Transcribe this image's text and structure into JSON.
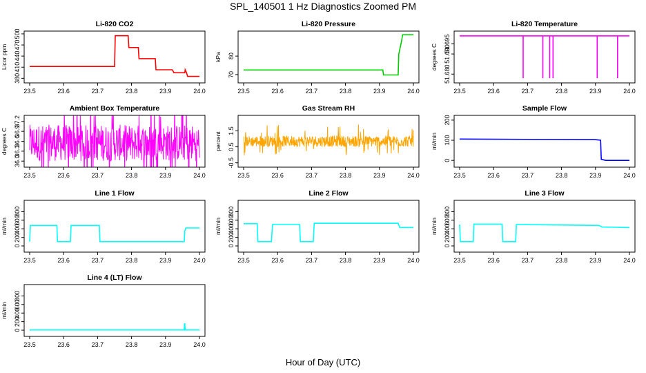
{
  "figure": {
    "title": "SPL_140501  1 Hz Diagnostics Zoomed PM",
    "xlabel": "Hour of Day (UTC)"
  },
  "chart_data": [
    {
      "type": "line",
      "title": "Li-820 CO2",
      "ylabel": "Licor ppm",
      "color": "#ff0000",
      "xlim": [
        23.5,
        24.0
      ],
      "ylim": [
        375,
        500
      ],
      "x_ticks": [
        "23.5",
        "23.6",
        "23.7",
        "23.8",
        "23.9",
        "24.0"
      ],
      "y_ticks": [
        {
          "v": 380,
          "label": "380"
        },
        {
          "v": 410,
          "label": "410"
        },
        {
          "v": 440,
          "label": "440"
        },
        {
          "v": 470,
          "label": "470"
        },
        {
          "v": 500,
          "label": "500"
        }
      ],
      "series": [
        {
          "x": [
            23.5,
            23.75,
            23.752,
            23.79,
            23.792,
            23.82,
            23.822,
            23.87,
            23.872,
            23.92,
            23.925,
            23.957,
            23.958,
            23.962,
            23.965,
            24.0
          ],
          "y": [
            412,
            412,
            495,
            495,
            463,
            463,
            433,
            433,
            403,
            403,
            395,
            395,
            403,
            395,
            385,
            385
          ]
        }
      ]
    },
    {
      "type": "line",
      "title": "Li-820 Pressure",
      "ylabel": "kPa",
      "color": "#00cc00",
      "xlim": [
        23.5,
        24.0
      ],
      "ylim": [
        67,
        92
      ],
      "x_ticks": [
        "23.5",
        "23.6",
        "23.7",
        "23.8",
        "23.9",
        "24.0"
      ],
      "y_ticks": [
        {
          "v": 70,
          "label": "70"
        },
        {
          "v": 80,
          "label": "80"
        }
      ],
      "series": [
        {
          "x": [
            23.5,
            23.91,
            23.912,
            23.955,
            23.957,
            23.965,
            23.968,
            24.0
          ],
          "y": [
            72.5,
            72.5,
            69.8,
            69.8,
            81,
            88,
            91.5,
            91.5
          ]
        }
      ]
    },
    {
      "type": "line",
      "title": "Li-820 Temperature",
      "ylabel": "degrees C",
      "color": "#ff00ff",
      "xlim": [
        23.5,
        24.0
      ],
      "ylim": [
        51.677,
        51.7
      ],
      "x_ticks": [
        "23.5",
        "23.6",
        "23.7",
        "23.8",
        "23.9",
        "24.0"
      ],
      "y_ticks": [
        {
          "v": 51.68,
          "label": "51.680"
        },
        {
          "v": 51.69,
          "label": "51.690"
        },
        {
          "v": 51.695,
          "label": "51.695"
        }
      ],
      "series": [
        {
          "x": [
            23.5,
            23.687,
            23.687,
            23.687,
            23.745,
            23.745,
            23.745,
            23.765,
            23.765,
            23.765,
            23.775,
            23.775,
            23.775,
            23.905,
            23.905,
            23.905,
            23.965,
            23.965,
            23.965,
            24.0
          ],
          "y": [
            51.699,
            51.699,
            51.678,
            51.699,
            51.699,
            51.678,
            51.699,
            51.699,
            51.678,
            51.699,
            51.699,
            51.678,
            51.699,
            51.699,
            51.678,
            51.699,
            51.699,
            51.678,
            51.699,
            51.699
          ]
        }
      ]
    },
    {
      "type": "line",
      "title": "Ambient Box Temperature",
      "ylabel": "degrees C",
      "color": "#ff00ff",
      "noise": "band",
      "xlim": [
        23.5,
        24.0
      ],
      "ylim": [
        35.9,
        37.3
      ],
      "x_ticks": [
        "23.5",
        "23.6",
        "23.7",
        "23.8",
        "23.9",
        "24.0"
      ],
      "y_ticks": [
        {
          "v": 36.0,
          "label": "36.0"
        },
        {
          "v": 36.3,
          "label": "36.3"
        },
        {
          "v": 36.6,
          "label": "36.6"
        },
        {
          "v": 36.9,
          "label": "36.9"
        },
        {
          "v": 37.2,
          "label": "37.2"
        }
      ],
      "series": [
        {
          "x": [
            23.5,
            24.0
          ],
          "y_low": [
            36.0,
            36.0
          ],
          "y_high": [
            37.1,
            37.1
          ],
          "y_mid": [
            36.55,
            36.55
          ]
        }
      ]
    },
    {
      "type": "line",
      "title": "Gas Stream RH",
      "ylabel": "percent",
      "color": "#ffa500",
      "noise": "band",
      "xlim": [
        23.5,
        24.0
      ],
      "ylim": [
        -0.6,
        2.3
      ],
      "x_ticks": [
        "23.5",
        "23.6",
        "23.7",
        "23.8",
        "23.9",
        "24.0"
      ],
      "y_ticks": [
        {
          "v": -0.5,
          "label": "-0.5"
        },
        {
          "v": 0.5,
          "label": "0.5"
        },
        {
          "v": 1.5,
          "label": "1.5"
        }
      ],
      "series": [
        {
          "x": [
            23.5,
            24.0
          ],
          "y_low": [
            0.5,
            0.5
          ],
          "y_high": [
            1.2,
            1.2
          ],
          "y_mid": [
            0.85,
            0.85
          ]
        }
      ]
    },
    {
      "type": "line",
      "title": "Sample Flow",
      "ylabel": "ml/min",
      "color": "#0000ff",
      "xlim": [
        23.5,
        24.0
      ],
      "ylim": [
        -20,
        210
      ],
      "x_ticks": [
        "23.5",
        "23.6",
        "23.7",
        "23.8",
        "23.9",
        "24.0"
      ],
      "y_ticks": [
        {
          "v": 0,
          "label": "0"
        },
        {
          "v": 100,
          "label": "100"
        },
        {
          "v": 200,
          "label": "200"
        }
      ],
      "series": [
        {
          "x": [
            23.5,
            23.9,
            23.915,
            23.917,
            23.93,
            24.0
          ],
          "y": [
            106,
            103,
            100,
            5,
            0,
            0
          ]
        }
      ]
    },
    {
      "type": "line",
      "title": "Line 1 Flow",
      "ylabel": "ml/min",
      "color": "#00ffff",
      "xlim": [
        23.5,
        24.0
      ],
      "ylim": [
        -80,
        1000
      ],
      "x_ticks": [
        "23.5",
        "23.6",
        "23.7",
        "23.8",
        "23.9",
        "24.0"
      ],
      "y_ticks": [
        {
          "v": 0,
          "label": "0"
        },
        {
          "v": 200,
          "label": "200"
        },
        {
          "v": 400,
          "label": "400"
        },
        {
          "v": 600,
          "label": "600"
        },
        {
          "v": 800,
          "label": "800"
        }
      ],
      "series": [
        {
          "x": [
            23.5,
            23.502,
            23.58,
            23.582,
            23.62,
            23.622,
            23.705,
            23.707,
            23.955,
            23.957,
            23.96,
            24.0
          ],
          "y": [
            100,
            480,
            480,
            100,
            100,
            480,
            480,
            100,
            100,
            350,
            420,
            420
          ]
        }
      ]
    },
    {
      "type": "line",
      "title": "Line 2 Flow",
      "ylabel": "ml/min",
      "color": "#00ffff",
      "xlim": [
        23.5,
        24.0
      ],
      "ylim": [
        -80,
        1000
      ],
      "x_ticks": [
        "23.5",
        "23.6",
        "23.7",
        "23.8",
        "23.9",
        "24.0"
      ],
      "y_ticks": [
        {
          "v": 0,
          "label": "0"
        },
        {
          "v": 200,
          "label": "200"
        },
        {
          "v": 400,
          "label": "400"
        },
        {
          "v": 600,
          "label": "600"
        },
        {
          "v": 800,
          "label": "800"
        }
      ],
      "series": [
        {
          "x": [
            23.5,
            23.54,
            23.542,
            23.582,
            23.585,
            23.665,
            23.667,
            23.705,
            23.708,
            23.955,
            23.96,
            24.0
          ],
          "y": [
            520,
            520,
            100,
            100,
            500,
            500,
            100,
            100,
            530,
            530,
            430,
            430
          ]
        }
      ]
    },
    {
      "type": "line",
      "title": "Line 3 Flow",
      "ylabel": "ml/min",
      "color": "#00ffff",
      "xlim": [
        23.5,
        24.0
      ],
      "ylim": [
        -80,
        1000
      ],
      "x_ticks": [
        "23.5",
        "23.6",
        "23.7",
        "23.8",
        "23.9",
        "24.0"
      ],
      "y_ticks": [
        {
          "v": 0,
          "label": "0"
        },
        {
          "v": 200,
          "label": "200"
        },
        {
          "v": 400,
          "label": "400"
        },
        {
          "v": 600,
          "label": "600"
        },
        {
          "v": 800,
          "label": "800"
        }
      ],
      "series": [
        {
          "x": [
            23.5,
            23.502,
            23.54,
            23.542,
            23.625,
            23.627,
            23.665,
            23.667,
            23.91,
            23.92,
            24.0
          ],
          "y": [
            500,
            100,
            100,
            510,
            510,
            100,
            100,
            500,
            480,
            440,
            430
          ]
        }
      ]
    },
    {
      "type": "line",
      "title": "Line 4 (LT) Flow",
      "ylabel": "ml/min",
      "color": "#00ffff",
      "xlim": [
        23.5,
        24.0
      ],
      "ylim": [
        -80,
        1000
      ],
      "x_ticks": [
        "23.5",
        "23.6",
        "23.7",
        "23.8",
        "23.9",
        "24.0"
      ],
      "y_ticks": [
        {
          "v": 0,
          "label": "0"
        },
        {
          "v": 200,
          "label": "200"
        },
        {
          "v": 400,
          "label": "400"
        },
        {
          "v": 600,
          "label": "600"
        },
        {
          "v": 800,
          "label": "800"
        }
      ],
      "series": [
        {
          "x": [
            23.5,
            23.955,
            23.956,
            23.957,
            23.958,
            24.0
          ],
          "y": [
            5,
            5,
            150,
            150,
            5,
            5
          ]
        }
      ]
    }
  ]
}
